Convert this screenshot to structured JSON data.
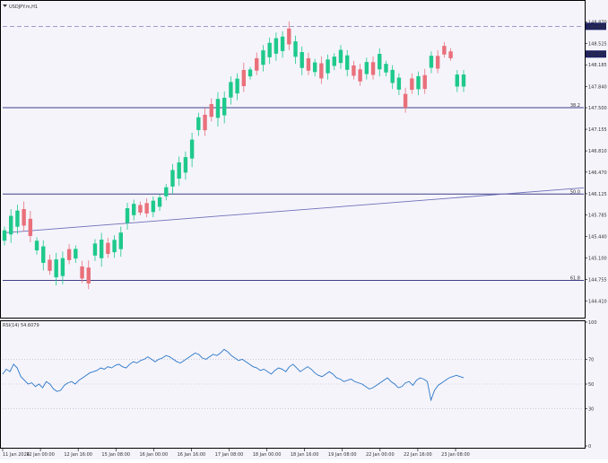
{
  "header": {
    "symbol": "USDJPY.m,H1"
  },
  "colors": {
    "background": "#f5f4fb",
    "bull": "#1ec98c",
    "bear": "#e9707b",
    "hline": "#3f3f88",
    "trendline": "#6f6fb8",
    "rsi": "#2b78c8",
    "dashed": "#7f7fc0",
    "price_tag_bg": "#1e2260",
    "axis_text": "#333333"
  },
  "chart_data": [
    {
      "type": "candlestick",
      "title": "USDJPY.m,H1",
      "ylim": [
        144.26,
        149.02
      ],
      "yticks": [
        "148.870",
        "148.525",
        "148.185",
        "147.840",
        "147.500",
        "147.155",
        "146.810",
        "146.470",
        "146.125",
        "145.785",
        "145.440",
        "145.100",
        "144.755",
        "144.410"
      ],
      "current_price": "148.357",
      "dashed_level": {
        "value": 148.8,
        "label": "148.800"
      },
      "fib_levels": [
        {
          "label": "38.2",
          "value": 147.5
        },
        {
          "label": "50.0",
          "value": 146.12
        },
        {
          "label": "61.8",
          "value": 144.74
        }
      ],
      "trendline": {
        "start": {
          "x": "11 Jan 2024",
          "y": 145.5
        },
        "end": {
          "x": "23 Jan 2024 13:00",
          "y": 146.22
        }
      },
      "bull_wicks": [
        [
          145.12,
          145.6
        ],
        [
          145.34,
          145.88
        ],
        [
          145.48,
          145.95
        ],
        [
          145.3,
          145.6
        ],
        [
          144.96,
          145.5
        ],
        [
          145.1,
          145.46
        ],
        [
          145.05,
          145.4
        ],
        [
          144.66,
          145.18
        ],
        [
          144.68,
          145.2
        ],
        [
          144.9,
          145.38
        ],
        [
          145.02,
          145.3
        ],
        [
          145.15,
          145.43
        ],
        [
          145.55,
          145.98
        ],
        [
          145.75,
          146.08
        ],
        [
          145.7,
          146.03
        ],
        [
          145.85,
          146.12
        ],
        [
          146.02,
          146.28
        ],
        [
          146.12,
          146.6
        ],
        [
          146.25,
          146.72
        ],
        [
          146.35,
          146.8
        ],
        [
          146.55,
          147.1
        ],
        [
          147.05,
          147.42
        ],
        [
          147.2,
          147.75
        ],
        [
          147.55,
          148.0
        ],
        [
          147.62,
          148.05
        ],
        [
          147.7,
          148.08
        ],
        [
          147.75,
          148.1
        ],
        [
          147.75,
          148.1
        ],
        [
          147.8,
          148.18
        ],
        [
          148.0,
          148.28
        ],
        [
          148.12,
          148.5
        ],
        [
          148.2,
          148.62
        ],
        [
          148.25,
          148.7
        ],
        [
          148.0,
          148.42
        ],
        [
          148.0,
          148.45
        ],
        [
          148.02,
          148.48
        ],
        [
          148.08,
          148.5
        ],
        [
          147.95,
          148.3
        ],
        [
          147.95,
          148.35
        ],
        [
          148.05,
          148.4
        ],
        [
          148.1,
          148.37
        ],
        [
          147.25,
          147.76
        ],
        [
          147.7,
          148.05
        ],
        [
          147.95,
          148.15
        ],
        [
          148.0,
          148.25
        ],
        [
          148.2,
          148.65
        ],
        [
          148.3,
          148.72
        ]
      ],
      "bear_wicks": [
        [
          145.52,
          146.0
        ],
        [
          145.35,
          145.85
        ],
        [
          145.1,
          145.42
        ],
        [
          145.0,
          145.32
        ],
        [
          144.83,
          145.15
        ],
        [
          144.6,
          145.06
        ],
        [
          144.7,
          145.05
        ],
        [
          145.75,
          146.05
        ],
        [
          145.78,
          146.0
        ],
        [
          147.42,
          147.82
        ],
        [
          147.88,
          148.32
        ],
        [
          147.85,
          148.2
        ],
        [
          147.72,
          148.12
        ],
        [
          148.02,
          148.38
        ],
        [
          148.42,
          148.88
        ],
        [
          147.95,
          148.32
        ],
        [
          147.95,
          148.25
        ],
        [
          148.02,
          148.38
        ],
        [
          147.72,
          148.05
        ],
        [
          147.75,
          148.22
        ],
        [
          148.05,
          148.42
        ],
        [
          147.28,
          147.65
        ],
        [
          147.05,
          147.5
        ],
        [
          148.3,
          148.55
        ],
        [
          148.25,
          148.45
        ]
      ],
      "xticks": [
        "11 Jan 2024",
        "12 Jan 00:00",
        "12 Jan 16:00",
        "15 Jan 08:00",
        "16 Jan 00:00",
        "16 Jan 16:00",
        "17 Jan 08:00",
        "18 Jan 00:00",
        "18 Jan 16:00",
        "19 Jan 08:00",
        "22 Jan 00:00",
        "22 Jan 16:00",
        "23 Jan 08:00"
      ]
    },
    {
      "type": "line",
      "title": "RSI(14) 54.6079",
      "ylim": [
        0,
        100
      ],
      "yticks": [
        "100",
        "70",
        "50",
        "30",
        "0"
      ],
      "levels": [
        70,
        50,
        30
      ],
      "series": [
        {
          "values": [
            58,
            62,
            60,
            66,
            63,
            56,
            53,
            50,
            51,
            48,
            50,
            47,
            52,
            50,
            46,
            44,
            45,
            49,
            51,
            52,
            50,
            53,
            55,
            57,
            59,
            60,
            61,
            63,
            62,
            64,
            63,
            65,
            66,
            64,
            63,
            66,
            68,
            67,
            69,
            70,
            72,
            70,
            68,
            70,
            71,
            73,
            72,
            70,
            68,
            67,
            69,
            71,
            73,
            75,
            74,
            71,
            70,
            72,
            74,
            73,
            75,
            78,
            76,
            73,
            71,
            69,
            70,
            68,
            66,
            64,
            63,
            61,
            62,
            60,
            58,
            61,
            63,
            62,
            60,
            64,
            66,
            63,
            60,
            62,
            64,
            62,
            59,
            57,
            56,
            58,
            60,
            58,
            55,
            54,
            52,
            53,
            54,
            52,
            51,
            50,
            48,
            46,
            47,
            49,
            51,
            53,
            55,
            52,
            50,
            47,
            48,
            51,
            52,
            49,
            53,
            55,
            54,
            52,
            37,
            45,
            49,
            51,
            53,
            55,
            56,
            57,
            56,
            55
          ]
        }
      ]
    }
  ]
}
